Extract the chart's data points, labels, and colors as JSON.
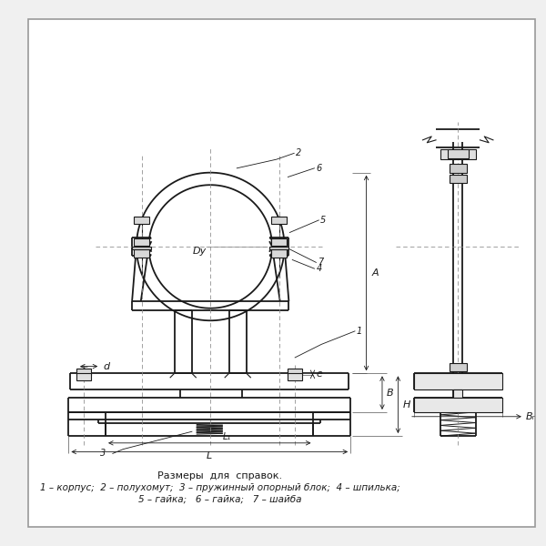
{
  "bg_color": "#f0f0f0",
  "line_color": "#1a1a1a",
  "title_text": "Размеры  для  справок.",
  "legend_line1": "1 – корпус;  2 – полухомут;  3 – пружинный опорный блок;  4 – шпилька;",
  "legend_line2": "5 – гайка;   6 – гайка;   7 – шайба",
  "title_fontsize": 8,
  "legend_fontsize": 7.5
}
